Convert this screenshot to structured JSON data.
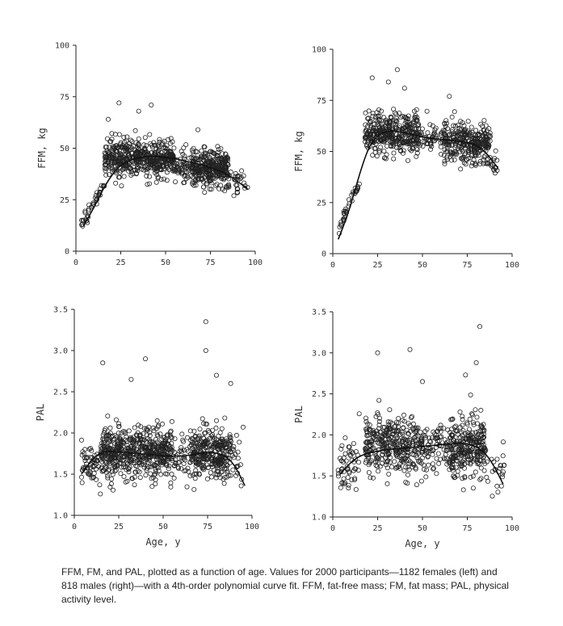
{
  "chart_data": [
    {
      "id": "ffm-female",
      "type": "scatter",
      "title": "",
      "xlabel": "",
      "ylabel": "FFM, kg",
      "xlim": [
        0,
        100
      ],
      "ylim": [
        0,
        100
      ],
      "xticks": [
        "0",
        "25",
        "50",
        "75",
        "100"
      ],
      "yticks": [
        "0",
        "25",
        "50",
        "75",
        "100"
      ],
      "fit_curve": {
        "x": [
          4,
          10,
          15,
          20,
          25,
          30,
          35,
          40,
          45,
          50,
          55,
          60,
          65,
          70,
          75,
          80,
          85,
          90,
          96
        ],
        "y": [
          12,
          21,
          30,
          37,
          42,
          44,
          45.5,
          46,
          46,
          45.5,
          45,
          44,
          43,
          42,
          40.5,
          39,
          37,
          34,
          30
        ]
      },
      "clusters": [
        {
          "x": [
            3,
            16
          ],
          "y_center_at_start": 13,
          "y_center_at_end": 33,
          "spread": 3,
          "count": 40
        },
        {
          "x": [
            16,
            55
          ],
          "y_center": 45,
          "spread": 7,
          "count": 520
        },
        {
          "x": [
            55,
            65
          ],
          "y_center": 41,
          "spread": 6,
          "count": 60
        },
        {
          "x": [
            65,
            85
          ],
          "y_center": 40,
          "spread": 7,
          "count": 330
        },
        {
          "x": [
            85,
            96
          ],
          "y_center": 35,
          "spread": 6,
          "count": 30
        }
      ],
      "outliers": [
        {
          "x": 24,
          "y": 72
        },
        {
          "x": 42,
          "y": 71
        },
        {
          "x": 35,
          "y": 68
        },
        {
          "x": 68,
          "y": 59
        },
        {
          "x": 18,
          "y": 64
        }
      ]
    },
    {
      "id": "ffm-male",
      "type": "scatter",
      "title": "",
      "xlabel": "",
      "ylabel": "FFM, kg",
      "xlim": [
        0,
        100
      ],
      "ylim": [
        0,
        100
      ],
      "xticks": [
        "0",
        "25",
        "50",
        "75",
        "100"
      ],
      "yticks": [
        "0",
        "25",
        "50",
        "75",
        "100"
      ],
      "fit_curve": {
        "x": [
          3,
          8,
          12,
          16,
          20,
          25,
          30,
          35,
          40,
          45,
          50,
          55,
          60,
          65,
          70,
          75,
          80,
          85,
          92
        ],
        "y": [
          7,
          18,
          30,
          42,
          52,
          58,
          60,
          60,
          59,
          58,
          57,
          56.5,
          56,
          55.5,
          55,
          54.5,
          53,
          50,
          42
        ]
      },
      "clusters": [
        {
          "x": [
            3,
            15
          ],
          "y_center_at_start": 13,
          "y_center_at_end": 35,
          "spread": 3,
          "count": 35
        },
        {
          "x": [
            18,
            48
          ],
          "y_center": 59,
          "spread": 8,
          "count": 380
        },
        {
          "x": [
            48,
            62
          ],
          "y_center": 57,
          "spread": 7,
          "count": 50
        },
        {
          "x": [
            62,
            88
          ],
          "y_center": 54,
          "spread": 8,
          "count": 310
        },
        {
          "x": [
            88,
            92
          ],
          "y_center": 45,
          "spread": 6,
          "count": 15
        }
      ],
      "outliers": [
        {
          "x": 36,
          "y": 90
        },
        {
          "x": 22,
          "y": 86
        },
        {
          "x": 31,
          "y": 84
        },
        {
          "x": 65,
          "y": 77
        },
        {
          "x": 40,
          "y": 81
        }
      ]
    },
    {
      "id": "pal-female",
      "type": "scatter",
      "title": "",
      "xlabel": "",
      "ylabel": "PAL",
      "xlim": [
        0,
        100
      ],
      "ylim": [
        1.0,
        3.5
      ],
      "xticks": [
        "0",
        "25",
        "50",
        "75",
        "100"
      ],
      "yticks": [
        "1.0",
        "1.5",
        "2.0",
        "2.5",
        "3.0",
        "3.5"
      ],
      "fit_curve": {
        "x": [
          4,
          8,
          12,
          16,
          20,
          25,
          30,
          35,
          40,
          45,
          50,
          55,
          60,
          65,
          70,
          75,
          80,
          85,
          90,
          96
        ],
        "y": [
          1.5,
          1.62,
          1.72,
          1.77,
          1.78,
          1.77,
          1.76,
          1.75,
          1.74,
          1.73,
          1.72,
          1.72,
          1.72,
          1.73,
          1.75,
          1.76,
          1.76,
          1.72,
          1.62,
          1.36
        ]
      },
      "clusters": [
        {
          "x": [
            4,
            15
          ],
          "y_center": 1.6,
          "spread": 0.2,
          "count": 60
        },
        {
          "x": [
            15,
            55
          ],
          "y_center": 1.76,
          "spread": 0.25,
          "count": 560
        },
        {
          "x": [
            55,
            65
          ],
          "y_center": 1.72,
          "spread": 0.22,
          "count": 40
        },
        {
          "x": [
            65,
            88
          ],
          "y_center": 1.76,
          "spread": 0.25,
          "count": 320
        },
        {
          "x": [
            88,
            96
          ],
          "y_center": 1.7,
          "spread": 0.25,
          "count": 20
        }
      ],
      "outliers": [
        {
          "x": 74,
          "y": 3.35
        },
        {
          "x": 74,
          "y": 3.0
        },
        {
          "x": 40,
          "y": 2.9
        },
        {
          "x": 16,
          "y": 2.85
        },
        {
          "x": 80,
          "y": 2.7
        },
        {
          "x": 32,
          "y": 2.65
        },
        {
          "x": 88,
          "y": 2.6
        },
        {
          "x": 95,
          "y": 2.07
        }
      ]
    },
    {
      "id": "pal-male",
      "type": "scatter",
      "title": "",
      "xlabel": "Age, y",
      "ylabel": "PAL",
      "xlim": [
        0,
        100
      ],
      "ylim": [
        1.0,
        3.5
      ],
      "xticks": [
        "0",
        "25",
        "50",
        "75",
        "100"
      ],
      "yticks": [
        "1.0",
        "1.5",
        "2.0",
        "2.5",
        "3.0",
        "3.5"
      ],
      "fit_curve": {
        "x": [
          4,
          8,
          12,
          16,
          20,
          25,
          30,
          35,
          40,
          45,
          50,
          55,
          60,
          65,
          70,
          75,
          80,
          85,
          90,
          95
        ],
        "y": [
          1.52,
          1.62,
          1.7,
          1.75,
          1.78,
          1.8,
          1.82,
          1.83,
          1.84,
          1.85,
          1.86,
          1.87,
          1.88,
          1.89,
          1.9,
          1.89,
          1.86,
          1.78,
          1.62,
          1.4
        ]
      },
      "clusters": [
        {
          "x": [
            3,
            15
          ],
          "y_center": 1.65,
          "spread": 0.28,
          "count": 55
        },
        {
          "x": [
            18,
            50
          ],
          "y_center": 1.85,
          "spread": 0.3,
          "count": 360
        },
        {
          "x": [
            50,
            65
          ],
          "y_center": 1.86,
          "spread": 0.25,
          "count": 80
        },
        {
          "x": [
            65,
            85
          ],
          "y_center": 1.85,
          "spread": 0.3,
          "count": 280
        },
        {
          "x": [
            85,
            96
          ],
          "y_center": 1.6,
          "spread": 0.25,
          "count": 25
        }
      ],
      "outliers": [
        {
          "x": 82,
          "y": 3.32
        },
        {
          "x": 43,
          "y": 3.04
        },
        {
          "x": 25,
          "y": 3.0
        },
        {
          "x": 80,
          "y": 2.88
        },
        {
          "x": 74,
          "y": 2.73
        },
        {
          "x": 50,
          "y": 2.65
        }
      ]
    }
  ],
  "shared_xlabel": "Age, y",
  "caption": "FFM, FM, and PAL, plotted as a function of age. Values for 2000 participants—1182 females (left) and 818 males (right)—with a 4th-order polynomial curve fit. FFM, fat-free mass; FM, fat mass; PAL, physical activity level."
}
